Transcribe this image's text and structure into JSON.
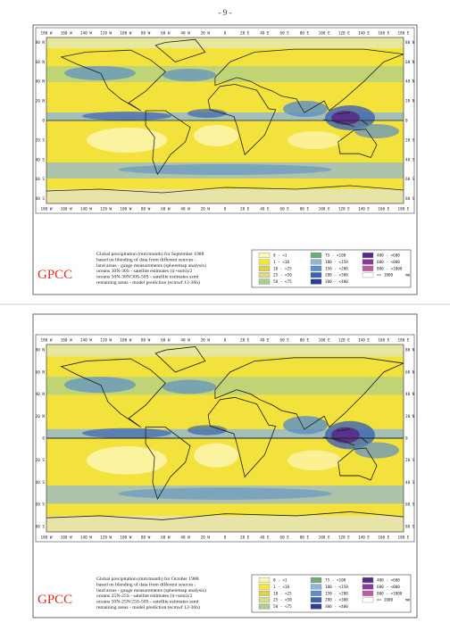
{
  "page_number": "- 9 -",
  "longitude_labels": [
    "180 W",
    "160 W",
    "140 W",
    "120 W",
    "100 W",
    "80 W",
    "60 W",
    "40 W",
    "20 W",
    "0",
    "20 E",
    "40 E",
    "60 E",
    "80 E",
    "100 E",
    "120 E",
    "140 E",
    "160 E",
    "180 E"
  ],
  "latitude_labels": [
    "80 N",
    "60 N",
    "40 N",
    "20 N",
    "0",
    "20 S",
    "40 S",
    "60 S",
    "80 S"
  ],
  "legend": {
    "unit": "mm",
    "items": [
      {
        "label": "0 - <1",
        "color": "#fdf7b8"
      },
      {
        "label": "1 - <10",
        "color": "#f5e63a"
      },
      {
        "label": "10 - <25",
        "color": "#e0d24a"
      },
      {
        "label": "25 - <50",
        "color": "#d6dc8a"
      },
      {
        "label": "50 - <75",
        "color": "#a9cf8e"
      },
      {
        "label": "75 - <100",
        "color": "#6fae7a"
      },
      {
        "label": "100 - <150",
        "color": "#8fb6d8"
      },
      {
        "label": "150 - <200",
        "color": "#5b8fc8"
      },
      {
        "label": "200 - <300",
        "color": "#3a64b0"
      },
      {
        "label": "300 - <400",
        "color": "#283f96"
      },
      {
        "label": "400 - <600",
        "color": "#5a2a8a"
      },
      {
        "label": "600 - <800",
        "color": "#8a3a9a"
      },
      {
        "label": "800 - <1000",
        "color": "#c45aa0"
      },
      {
        "label": ">= 1000",
        "color": "#ffffff"
      }
    ]
  },
  "panels": [
    {
      "logo": "GPCC",
      "caption": [
        "Global precipitation (mm/month) for September 1988",
        "based on blending of data from different sources :",
        "land areas - gauge measurements (spheremap analysis)",
        "oceans 30N-30S - satellite estimates (ir+ssmi)/2",
        "oceans 50N-30N/30S-50S - satellite estimates ssmi",
        "remaining areas - model prediction (ecmwf 12-36h)"
      ]
    },
    {
      "logo": "GPCC",
      "caption": [
        "Global precipitation (mm/month) for October 1988",
        "based on blending of data from different sources :",
        "land areas - gauge measurements (spheremap analysis)",
        "oceans 25N-25S - satellite estimates (ir+ssmi)/2",
        "oceans 50N-25N/25S-50S - satellite estimates ssmi",
        "remaining areas - model prediction (ecmwf 12-36h)"
      ]
    }
  ]
}
